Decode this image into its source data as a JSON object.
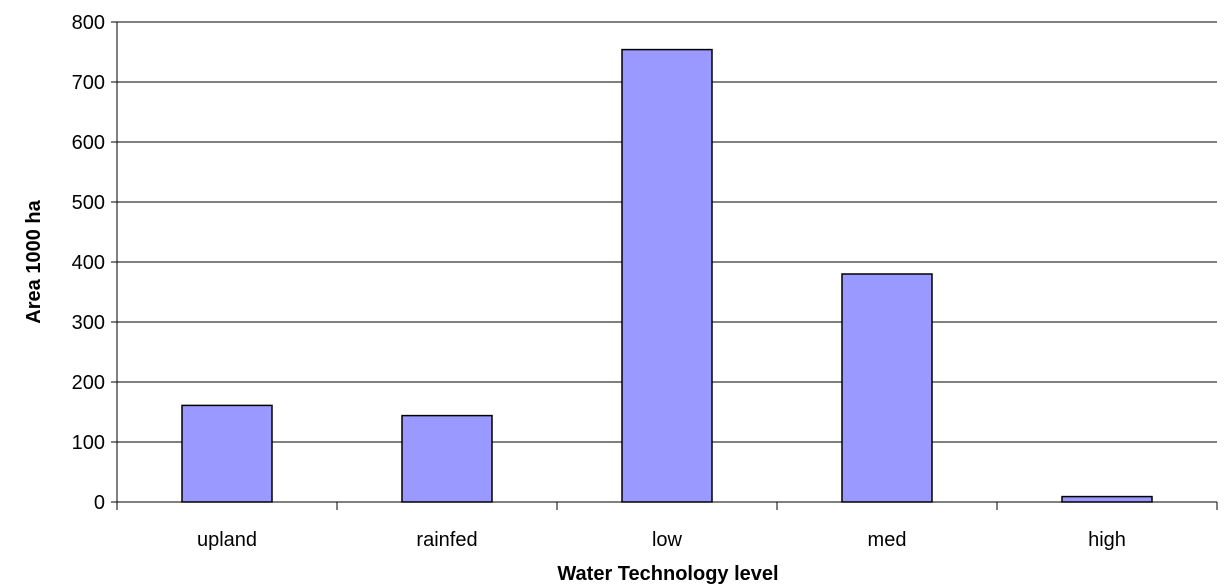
{
  "chart_data": {
    "type": "bar",
    "categories": [
      "upland",
      "rainfed",
      "low",
      "med",
      "high"
    ],
    "values": [
      161,
      144,
      754,
      380,
      9
    ],
    "title": "",
    "xlabel": "Water Technology level",
    "ylabel": "Area 1000 ha",
    "ylim": [
      0,
      800
    ],
    "yticks": [
      0,
      100,
      200,
      300,
      400,
      500,
      600,
      700,
      800
    ],
    "grid": true,
    "legend": "none",
    "colors": {
      "bar_fill": "#9999ff",
      "bar_stroke": "#000000",
      "grid": "#000000"
    }
  }
}
